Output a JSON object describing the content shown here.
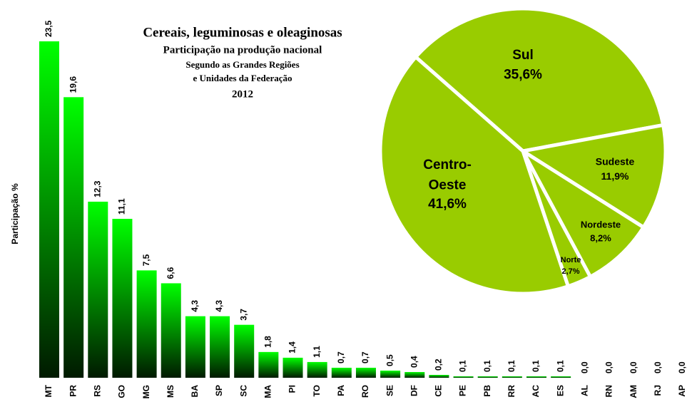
{
  "chart_data": [
    {
      "type": "bar",
      "title": "Cereais, leguminosas e oleaginosas",
      "subtitle": [
        "Participação na produção nacional",
        "Segundo as Grandes Regiões",
        "e Unidades da Federação",
        "2012"
      ],
      "y_label": "Participação %",
      "categories": [
        "MT",
        "PR",
        "RS",
        "GO",
        "MG",
        "MS",
        "BA",
        "SP",
        "SC",
        "MA",
        "PI",
        "TO",
        "PA",
        "RO",
        "SE",
        "DF",
        "CE",
        "PE",
        "PB",
        "RR",
        "AC",
        "ES",
        "AL",
        "RN",
        "AM",
        "RJ",
        "AP"
      ],
      "values": [
        23.5,
        19.6,
        12.3,
        11.1,
        7.5,
        6.6,
        4.3,
        4.3,
        3.7,
        1.8,
        1.4,
        1.1,
        0.7,
        0.7,
        0.5,
        0.4,
        0.2,
        0.1,
        0.1,
        0.1,
        0.1,
        0.1,
        0.0,
        0.0,
        0.0,
        0.0,
        0.0
      ],
      "value_labels": [
        "23,5",
        "19,6",
        "12,3",
        "11,1",
        "7,5",
        "6,6",
        "4,3",
        "4,3",
        "3,7",
        "1,8",
        "1,4",
        "1,1",
        "0,7",
        "0,7",
        "0,5",
        "0,4",
        "0,2",
        "0,1",
        "0,1",
        "0,1",
        "0,1",
        "0,1",
        "0,0",
        "0,0",
        "0,0",
        "0,0",
        "0,0"
      ],
      "color": "#00ff00"
    },
    {
      "type": "pie",
      "categories": [
        "Sul",
        "Sudeste",
        "Nordeste",
        "Norte",
        "Centro-Oeste"
      ],
      "values": [
        35.6,
        11.9,
        8.2,
        2.7,
        41.6
      ],
      "value_labels": [
        "35,6%",
        "11,9%",
        "8,2%",
        "2,7%",
        "41,6%"
      ],
      "color": "#99cc00"
    }
  ]
}
